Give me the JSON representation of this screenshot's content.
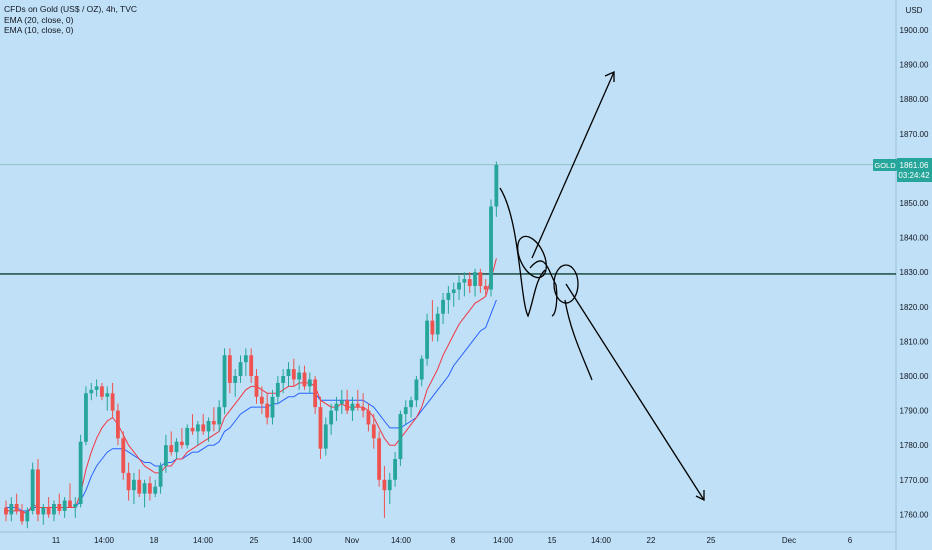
{
  "legend": {
    "symbol_line": "CFDs on Gold (US$ / OZ), 4h, TVC",
    "ema20_line": "EMA (20, close, 0)",
    "ema10_line": "EMA (10, close, 0)"
  },
  "price_axis": {
    "currency": "USD",
    "ticks": [
      "1900.00",
      "1890.00",
      "1880.00",
      "1870.00",
      "1850.00",
      "1840.00",
      "1830.00",
      "1820.00",
      "1810.00",
      "1800.00",
      "1790.00",
      "1780.00",
      "1770.00",
      "1760.00"
    ]
  },
  "price_badge": {
    "symbol": "GOLD",
    "price": "1861.06",
    "countdown": "03:24:42",
    "color": "#26a69a"
  },
  "time_axis": {
    "ticks": [
      "11",
      "14:00",
      "18",
      "14:00",
      "25",
      "14:00",
      "Nov",
      "14:00",
      "8",
      "14:00",
      "15",
      "14:00",
      "22",
      "25",
      "Dec",
      "6"
    ]
  },
  "colors": {
    "background": "#bfe0f6",
    "up": "#26a69a",
    "down": "#ef5350",
    "ema20": "#2962ff",
    "ema10": "#f23645",
    "hline": "#0b3d2e",
    "drawing": "#000000"
  },
  "chart_data": {
    "type": "candlestick",
    "symbol": "CFDs on Gold (US$ / OZ), 4h, TVC",
    "ylim": [
      1755,
      1905
    ],
    "last_price": 1861.06,
    "horizontal_line": 1829.5,
    "candles": [
      [
        1762,
        1764,
        1758,
        1760
      ],
      [
        1760,
        1765,
        1758,
        1763
      ],
      [
        1763,
        1766,
        1760,
        1761
      ],
      [
        1761,
        1763,
        1757,
        1758
      ],
      [
        1758,
        1762,
        1756,
        1761
      ],
      [
        1761,
        1775,
        1760,
        1773
      ],
      [
        1773,
        1776,
        1758,
        1760
      ],
      [
        1760,
        1763,
        1757,
        1762
      ],
      [
        1762,
        1765,
        1759,
        1760
      ],
      [
        1760,
        1764,
        1758,
        1763
      ],
      [
        1763,
        1766,
        1760,
        1761
      ],
      [
        1761,
        1765,
        1759,
        1764
      ],
      [
        1764,
        1769,
        1762,
        1762
      ],
      [
        1762,
        1765,
        1759,
        1763
      ],
      [
        1763,
        1783,
        1762,
        1781
      ],
      [
        1781,
        1797,
        1780,
        1795
      ],
      [
        1795,
        1798,
        1793,
        1796
      ],
      [
        1796,
        1799,
        1794,
        1797
      ],
      [
        1797,
        1798,
        1793,
        1794
      ],
      [
        1794,
        1797,
        1790,
        1795
      ],
      [
        1795,
        1798,
        1788,
        1790
      ],
      [
        1790,
        1792,
        1780,
        1782
      ],
      [
        1782,
        1784,
        1770,
        1772
      ],
      [
        1772,
        1775,
        1764,
        1767
      ],
      [
        1767,
        1772,
        1763,
        1770
      ],
      [
        1770,
        1773,
        1765,
        1766
      ],
      [
        1766,
        1770,
        1762,
        1769
      ],
      [
        1769,
        1771,
        1764,
        1766
      ],
      [
        1766,
        1770,
        1765,
        1768
      ],
      [
        1768,
        1775,
        1766,
        1774
      ],
      [
        1774,
        1783,
        1772,
        1780
      ],
      [
        1780,
        1784,
        1777,
        1778
      ],
      [
        1778,
        1782,
        1776,
        1781
      ],
      [
        1781,
        1785,
        1779,
        1780
      ],
      [
        1780,
        1786,
        1779,
        1785
      ],
      [
        1785,
        1789,
        1783,
        1784
      ],
      [
        1784,
        1787,
        1780,
        1786
      ],
      [
        1786,
        1789,
        1783,
        1784
      ],
      [
        1784,
        1788,
        1781,
        1787
      ],
      [
        1787,
        1791,
        1784,
        1786
      ],
      [
        1786,
        1793,
        1784,
        1791
      ],
      [
        1791,
        1808,
        1789,
        1806
      ],
      [
        1806,
        1808,
        1795,
        1798
      ],
      [
        1798,
        1802,
        1794,
        1800
      ],
      [
        1800,
        1806,
        1798,
        1804
      ],
      [
        1804,
        1808,
        1800,
        1806
      ],
      [
        1806,
        1808,
        1798,
        1800
      ],
      [
        1800,
        1802,
        1792,
        1794
      ],
      [
        1794,
        1797,
        1789,
        1792
      ],
      [
        1792,
        1795,
        1786,
        1788
      ],
      [
        1788,
        1796,
        1786,
        1794
      ],
      [
        1794,
        1800,
        1792,
        1798
      ],
      [
        1798,
        1802,
        1795,
        1800
      ],
      [
        1800,
        1804,
        1797,
        1802
      ],
      [
        1802,
        1805,
        1797,
        1799
      ],
      [
        1799,
        1803,
        1796,
        1801
      ],
      [
        1801,
        1803,
        1796,
        1797
      ],
      [
        1797,
        1801,
        1795,
        1799
      ],
      [
        1799,
        1800,
        1789,
        1791
      ],
      [
        1791,
        1794,
        1776,
        1779
      ],
      [
        1779,
        1788,
        1777,
        1786
      ],
      [
        1786,
        1792,
        1783,
        1790
      ],
      [
        1790,
        1794,
        1787,
        1792
      ],
      [
        1792,
        1796,
        1789,
        1793
      ],
      [
        1793,
        1796,
        1789,
        1790
      ],
      [
        1790,
        1794,
        1787,
        1792
      ],
      [
        1792,
        1796,
        1790,
        1791
      ],
      [
        1791,
        1795,
        1788,
        1790
      ],
      [
        1790,
        1792,
        1784,
        1786
      ],
      [
        1786,
        1789,
        1779,
        1782
      ],
      [
        1782,
        1784,
        1768,
        1770
      ],
      [
        1770,
        1774,
        1759,
        1767
      ],
      [
        1767,
        1772,
        1763,
        1770
      ],
      [
        1770,
        1778,
        1768,
        1776
      ],
      [
        1776,
        1790,
        1774,
        1789
      ],
      [
        1789,
        1793,
        1786,
        1791
      ],
      [
        1791,
        1794,
        1788,
        1793
      ],
      [
        1793,
        1800,
        1791,
        1799
      ],
      [
        1799,
        1806,
        1797,
        1805
      ],
      [
        1805,
        1818,
        1803,
        1816
      ],
      [
        1816,
        1822,
        1810,
        1812
      ],
      [
        1812,
        1820,
        1810,
        1818
      ],
      [
        1818,
        1824,
        1815,
        1822
      ],
      [
        1822,
        1826,
        1818,
        1824
      ],
      [
        1824,
        1827,
        1820,
        1825
      ],
      [
        1825,
        1829,
        1822,
        1827
      ],
      [
        1827,
        1830,
        1823,
        1828
      ],
      [
        1828,
        1830,
        1824,
        1826
      ],
      [
        1826,
        1831,
        1823,
        1830
      ],
      [
        1830,
        1831,
        1824,
        1826
      ],
      [
        1826,
        1828,
        1823,
        1825
      ],
      [
        1825,
        1851,
        1823,
        1849
      ],
      [
        1849,
        1862,
        1846,
        1861
      ]
    ],
    "ema10": [
      1761,
      1761,
      1761,
      1761,
      1760,
      1763,
      1762,
      1762,
      1762,
      1762,
      1762,
      1762,
      1762,
      1762,
      1766,
      1773,
      1778,
      1782,
      1785,
      1787,
      1788,
      1786,
      1783,
      1780,
      1778,
      1776,
      1774,
      1773,
      1772,
      1772,
      1774,
      1774,
      1776,
      1776,
      1778,
      1779,
      1780,
      1781,
      1782,
      1783,
      1784,
      1788,
      1790,
      1792,
      1794,
      1796,
      1797,
      1797,
      1796,
      1795,
      1795,
      1795,
      1796,
      1797,
      1797,
      1798,
      1798,
      1798,
      1797,
      1793,
      1792,
      1791,
      1791,
      1792,
      1791,
      1791,
      1791,
      1791,
      1790,
      1788,
      1785,
      1782,
      1780,
      1780,
      1782,
      1784,
      1786,
      1788,
      1791,
      1796,
      1799,
      1802,
      1806,
      1809,
      1812,
      1815,
      1817,
      1819,
      1821,
      1822,
      1823,
      1828,
      1834
    ],
    "ema20": [
      1762,
      1762,
      1762,
      1761,
      1761,
      1762,
      1762,
      1762,
      1762,
      1762,
      1762,
      1762,
      1762,
      1762,
      1764,
      1767,
      1771,
      1774,
      1776,
      1778,
      1779,
      1779,
      1779,
      1778,
      1777,
      1776,
      1775,
      1775,
      1774,
      1774,
      1775,
      1775,
      1776,
      1776,
      1777,
      1778,
      1778,
      1779,
      1780,
      1780,
      1781,
      1784,
      1785,
      1787,
      1789,
      1790,
      1791,
      1791,
      1791,
      1791,
      1792,
      1792,
      1793,
      1794,
      1794,
      1795,
      1795,
      1795,
      1795,
      1793,
      1793,
      1793,
      1793,
      1793,
      1793,
      1793,
      1793,
      1793,
      1792,
      1791,
      1789,
      1787,
      1785,
      1785,
      1785,
      1786,
      1787,
      1788,
      1790,
      1792,
      1794,
      1796,
      1798,
      1800,
      1803,
      1805,
      1807,
      1809,
      1811,
      1813,
      1814,
      1818,
      1822
    ]
  }
}
